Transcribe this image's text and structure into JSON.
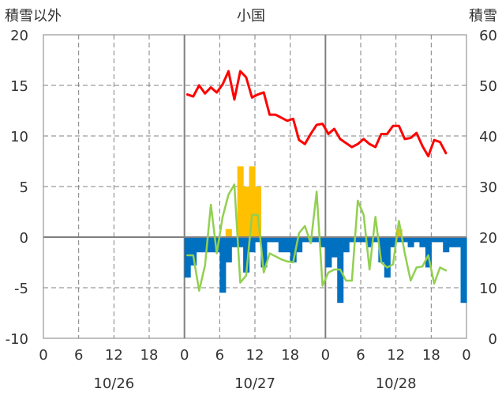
{
  "chart_data": {
    "type": "bar+line",
    "title": "小国",
    "y_left_label": "積雪以外",
    "y_right_label": "積雪",
    "y_left_ticks": [
      "20",
      "15",
      "10",
      "5",
      "0",
      "-5",
      "-10"
    ],
    "y_right_ticks": [
      "60",
      "50",
      "40",
      "30",
      "20",
      "10",
      "0"
    ],
    "ylim_left": [
      -10,
      20
    ],
    "ylim_right": [
      0,
      60
    ],
    "x_ticks": [
      "0",
      "6",
      "12",
      "18",
      "0",
      "6",
      "12",
      "18",
      "0",
      "6",
      "12",
      "18",
      "0"
    ],
    "date_labels": [
      "10/26",
      "10/27",
      "10/28"
    ],
    "xlim_hours": [
      0,
      72
    ],
    "grid": "dashed at 6 h intervals, solid at day boundaries",
    "series": [
      {
        "kind": "bar",
        "axis": "left",
        "color": "#ffc000",
        "start_hour": 24.5,
        "values": [
          0,
          0,
          0,
          0,
          0,
          0,
          0,
          0.8,
          0,
          7,
          5,
          7,
          5,
          0,
          0,
          0,
          0,
          0,
          0,
          0,
          0,
          0,
          0,
          0,
          0,
          0,
          0,
          0,
          0,
          0,
          0,
          0,
          0,
          0,
          0,
          0,
          0.8,
          0,
          0,
          0,
          0,
          0,
          0,
          0,
          0,
          0,
          0
        ]
      },
      {
        "kind": "bar",
        "axis": "left",
        "color": "#0070c0",
        "start_hour": 24.5,
        "values": [
          -4,
          -2.8,
          -1.5,
          -1.5,
          -1.5,
          -1.5,
          -5.5,
          -2.5,
          -1,
          -1,
          -3.5,
          -1.5,
          -0.5,
          -3,
          -0.5,
          -0.5,
          -1.5,
          -1.5,
          -2.5,
          -1.5,
          -0.5,
          -0.5,
          -0.5,
          -1,
          -3,
          -2,
          -6.5,
          -1.5,
          -0.5,
          -0.5,
          -0.5,
          -1,
          -0.5,
          -2.5,
          -4,
          -1,
          -0.5,
          -0.5,
          -1,
          -0.5,
          -1,
          -3,
          -0.5,
          -0.5,
          -1.5,
          -1,
          -1,
          -6.5
        ]
      },
      {
        "kind": "line",
        "axis": "left",
        "color": "#92d050",
        "start_hour": 24.5,
        "values": [
          -1.8,
          -1.8,
          -5.3,
          -2.8,
          3.2,
          -1.6,
          2.0,
          4.2,
          5.2,
          -4.5,
          -3.8,
          2.2,
          2.2,
          -3.5,
          -1.6,
          -1.9,
          -2.2,
          -2.4,
          -2.5,
          0.4,
          1.1,
          -0.6,
          4.5,
          -4.8,
          -3.5,
          -3.2,
          -3.2,
          -4.3,
          -4.3,
          3.6,
          2.2,
          -3.2,
          2.0,
          -2.5,
          -3.0,
          -2.7,
          1.6,
          -1.6,
          -4.3,
          -3.0,
          -2.9,
          -1.8,
          -4.6,
          -3.0,
          -3.3
        ]
      },
      {
        "kind": "line",
        "axis": "left",
        "color": "#ff0000",
        "start_hour": 24.5,
        "values": [
          14.1,
          13.9,
          15.0,
          14.2,
          14.8,
          14.3,
          15.1,
          16.4,
          13.6,
          16.4,
          15.8,
          13.8,
          14.1,
          14.3,
          12.1,
          12.1,
          11.8,
          11.5,
          11.7,
          9.6,
          9.2,
          10.2,
          11.1,
          11.2,
          10.2,
          10.7,
          9.7,
          9.3,
          8.9,
          9.2,
          9.7,
          9.2,
          8.9,
          10.2,
          10.2,
          11.0,
          11.0,
          9.7,
          9.8,
          10.3,
          9.0,
          8.0,
          9.6,
          9.4,
          8.3
        ]
      }
    ]
  }
}
